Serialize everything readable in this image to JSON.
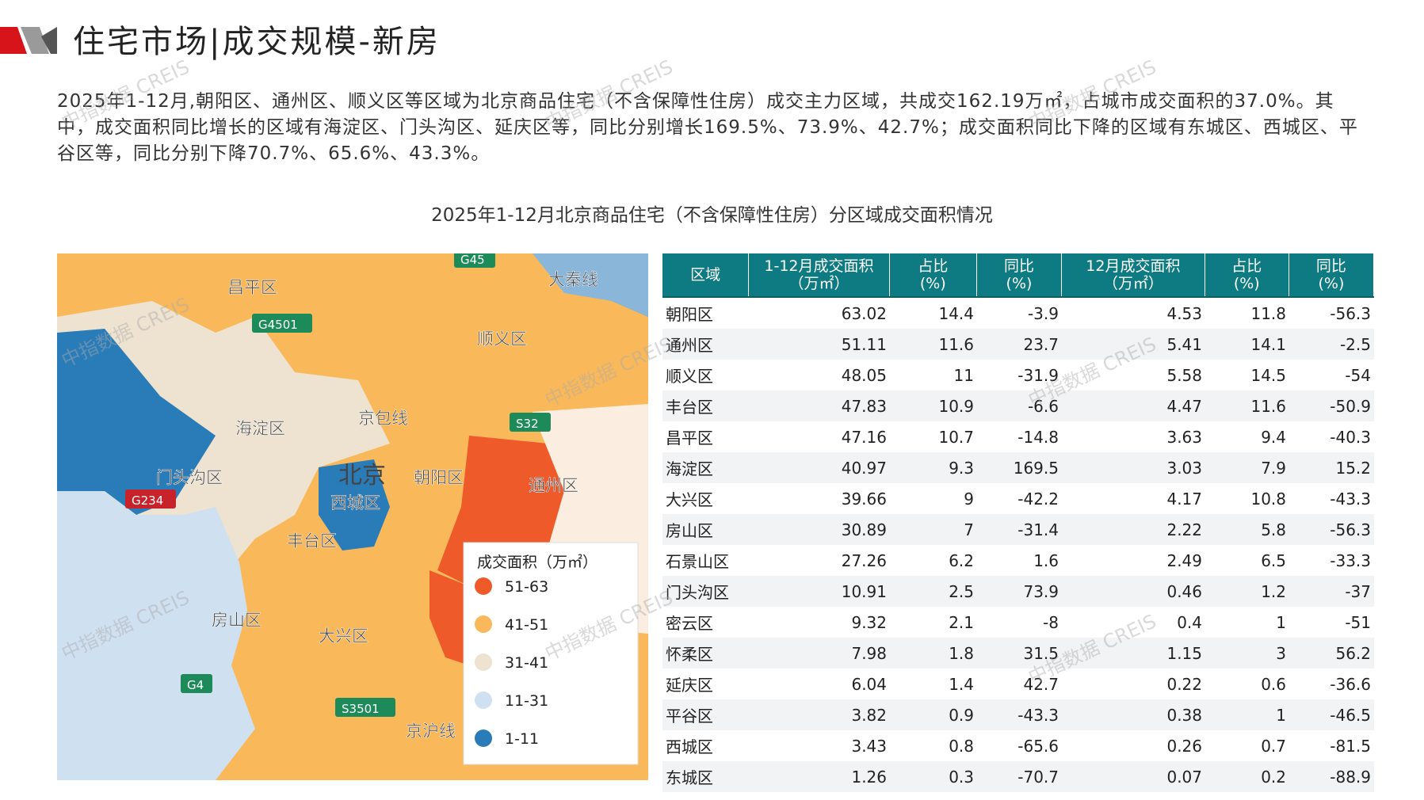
{
  "header": {
    "title": "住宅市场|成交规模-新房"
  },
  "paragraph": "2025年1-12月,朝阳区、通州区、顺义区等区域为北京商品住宅（不含保障性住房）成交主力区域，共成交162.19万㎡，占城市成交面积的37.0%。其中，成交面积同比增长的区域有海淀区、门头沟区、延庆区等，同比分别增长169.5%、73.9%、42.7%；成交面积同比下降的区域有东城区、西城区、平谷区等，同比分别下降70.7%、65.6%、43.3%。",
  "table_title": "2025年1-12月北京商品住宅（不含保障性住房）分区域成交面积情况",
  "watermark": "中指数据 CREIS",
  "map": {
    "labels": [
      "昌平区",
      "G4501",
      "G45",
      "大秦线",
      "顺义区",
      "海淀区",
      "京包线",
      "S32",
      "门头沟区",
      "G234",
      "北京",
      "朝阳区",
      "西城区",
      "通州区",
      "丰台区",
      "房山区",
      "大兴区",
      "G4",
      "S3501",
      "京沪线"
    ],
    "legend": {
      "title": "成交面积（万㎡）",
      "items": [
        {
          "label": "51-63",
          "color": "#ef5a2a"
        },
        {
          "label": "41-51",
          "color": "#f9b95a"
        },
        {
          "label": "31-41",
          "color": "#eee2d0"
        },
        {
          "label": "11-31",
          "color": "#cfe0f0"
        },
        {
          "label": "1-11",
          "color": "#2a7cb8"
        }
      ]
    }
  },
  "table": {
    "headers": [
      [
        "区域"
      ],
      [
        "1-12月成交面积",
        "（万㎡）"
      ],
      [
        "占比",
        "(%)"
      ],
      [
        "同比",
        "(%)"
      ],
      [
        "12月成交面积",
        "（万㎡）"
      ],
      [
        "占比",
        "(%)"
      ],
      [
        "同比",
        "(%)"
      ]
    ],
    "rows": [
      [
        "朝阳区",
        "63.02",
        "14.4",
        "-3.9",
        "4.53",
        "11.8",
        "-56.3"
      ],
      [
        "通州区",
        "51.11",
        "11.6",
        "23.7",
        "5.41",
        "14.1",
        "-2.5"
      ],
      [
        "顺义区",
        "48.05",
        "11",
        "-31.9",
        "5.58",
        "14.5",
        "-54"
      ],
      [
        "丰台区",
        "47.83",
        "10.9",
        "-6.6",
        "4.47",
        "11.6",
        "-50.9"
      ],
      [
        "昌平区",
        "47.16",
        "10.7",
        "-14.8",
        "3.63",
        "9.4",
        "-40.3"
      ],
      [
        "海淀区",
        "40.97",
        "9.3",
        "169.5",
        "3.03",
        "7.9",
        "15.2"
      ],
      [
        "大兴区",
        "39.66",
        "9",
        "-42.2",
        "4.17",
        "10.8",
        "-43.3"
      ],
      [
        "房山区",
        "30.89",
        "7",
        "-31.4",
        "2.22",
        "5.8",
        "-56.3"
      ],
      [
        "石景山区",
        "27.26",
        "6.2",
        "1.6",
        "2.49",
        "6.5",
        "-33.3"
      ],
      [
        "门头沟区",
        "10.91",
        "2.5",
        "73.9",
        "0.46",
        "1.2",
        "-37"
      ],
      [
        "密云区",
        "9.32",
        "2.1",
        "-8",
        "0.4",
        "1",
        "-51"
      ],
      [
        "怀柔区",
        "7.98",
        "1.8",
        "31.5",
        "1.15",
        "3",
        "56.2"
      ],
      [
        "延庆区",
        "6.04",
        "1.4",
        "42.7",
        "0.22",
        "0.6",
        "-36.6"
      ],
      [
        "平谷区",
        "3.82",
        "0.9",
        "-43.3",
        "0.38",
        "1",
        "-46.5"
      ],
      [
        "西城区",
        "3.43",
        "0.8",
        "-65.6",
        "0.26",
        "0.7",
        "-81.5"
      ],
      [
        "东城区",
        "1.26",
        "0.3",
        "-70.7",
        "0.07",
        "0.2",
        "-88.9"
      ]
    ]
  }
}
